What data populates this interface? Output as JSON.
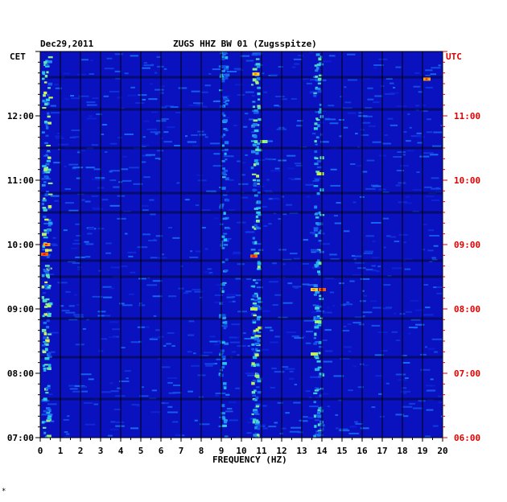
{
  "header": {
    "date": "Dec29,2011",
    "station": "ZUGS HHZ BW 01 (Zugsspitze)",
    "left_tz": "CET",
    "right_tz": "UTC"
  },
  "corner_mark": "*",
  "colors": {
    "background": "#0a12c0",
    "grid": "#000000",
    "utc_labels": "#e00000",
    "cet_labels": "#000000"
  },
  "chart_data": {
    "type": "heatmap",
    "title": "ZUGS HHZ BW 01 (Zugsspitze)",
    "xlabel": "FREQUENCY (HZ)",
    "ylabel": "",
    "xlim": [
      0,
      20
    ],
    "x_ticks": [
      "0",
      "1",
      "2",
      "3",
      "4",
      "5",
      "6",
      "7",
      "8",
      "9",
      "10",
      "11",
      "12",
      "13",
      "14",
      "15",
      "16",
      "17",
      "18",
      "19",
      "20"
    ],
    "y_ticks_cet": [
      "07:00",
      "08:00",
      "09:00",
      "10:00",
      "11:00",
      "12:00"
    ],
    "y_ticks_utc": [
      "06:00",
      "07:00",
      "08:00",
      "09:00",
      "10:00",
      "11:00"
    ],
    "time_range_cet_hours": [
      7.0,
      13.0
    ],
    "grid": true,
    "vertical_grid_hz": [
      1,
      2,
      3,
      4,
      5,
      6,
      7,
      8,
      9,
      10,
      11,
      12,
      13,
      14,
      15,
      16,
      17,
      18,
      19
    ],
    "horizontal_gap_rows_hours": [
      12.6,
      12.1,
      11.5,
      10.8,
      10.5,
      9.75,
      9.5,
      8.85,
      8.25,
      7.6
    ],
    "energy_bands_hz": [
      {
        "freq": 0.3,
        "intensity": 0.85
      },
      {
        "freq": 9.1,
        "intensity": 0.45
      },
      {
        "freq": 10.7,
        "intensity": 0.8
      },
      {
        "freq": 13.8,
        "intensity": 0.6
      }
    ],
    "hotspots": [
      {
        "freq": 10.6,
        "time_cet": 9.82,
        "value": 0.95
      },
      {
        "freq": 14.0,
        "time_cet": 9.3,
        "value": 0.95
      },
      {
        "freq": 13.6,
        "time_cet": 9.3,
        "value": 0.85
      },
      {
        "freq": 19.2,
        "time_cet": 12.57,
        "value": 0.9
      },
      {
        "freq": 0.2,
        "time_cet": 9.85,
        "value": 0.95
      },
      {
        "freq": 0.3,
        "time_cet": 10.0,
        "value": 0.9
      },
      {
        "freq": 10.7,
        "time_cet": 12.65,
        "value": 0.85
      },
      {
        "freq": 13.9,
        "time_cet": 11.1,
        "value": 0.75
      },
      {
        "freq": 11.1,
        "time_cet": 11.6,
        "value": 0.7
      },
      {
        "freq": 13.6,
        "time_cet": 8.3,
        "value": 0.75
      },
      {
        "freq": 13.8,
        "time_cet": 8.8,
        "value": 0.7
      },
      {
        "freq": 10.6,
        "time_cet": 9.0,
        "value": 0.75
      }
    ]
  }
}
